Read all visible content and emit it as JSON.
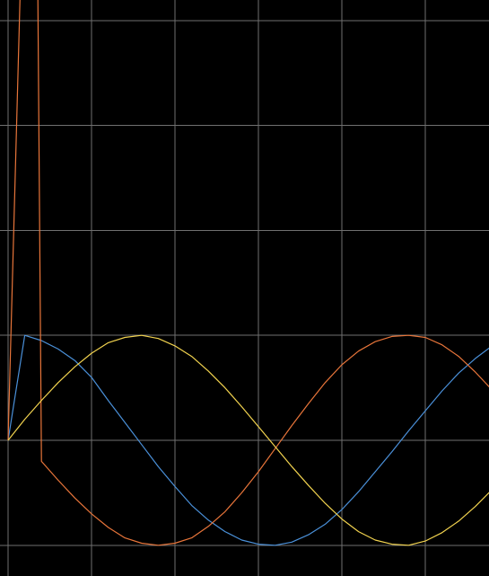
{
  "chart_data": {
    "type": "line",
    "title": "",
    "xlabel": "",
    "ylabel": "",
    "xlim": [
      0,
      5.8
    ],
    "ylim": [
      -1,
      4.2
    ],
    "grid": true,
    "legend": "none",
    "background": "#000000",
    "grid_color": "#707070",
    "x_gridlines": [
      0,
      1,
      2,
      3,
      4,
      5
    ],
    "y_gridlines": [
      -1,
      0,
      1,
      2,
      3,
      4
    ],
    "series": [
      {
        "color": "#4a90d9",
        "values": [
          [
            0,
            0
          ],
          [
            0.2,
            1
          ],
          [
            0.4,
            0.95
          ],
          [
            0.6,
            0.87
          ],
          [
            0.8,
            0.76
          ],
          [
            1.0,
            0.6
          ],
          [
            1.2,
            0.38
          ],
          [
            1.4,
            0.17
          ],
          [
            1.6,
            -0.04
          ],
          [
            1.8,
            -0.25
          ],
          [
            2.0,
            -0.44
          ],
          [
            2.2,
            -0.62
          ],
          [
            2.4,
            -0.76
          ],
          [
            2.6,
            -0.87
          ],
          [
            2.8,
            -0.95
          ],
          [
            3.0,
            -0.99
          ],
          [
            3.2,
            -1.0
          ],
          [
            3.4,
            -0.97
          ],
          [
            3.6,
            -0.9
          ],
          [
            3.8,
            -0.8
          ],
          [
            4.0,
            -0.66
          ],
          [
            4.2,
            -0.49
          ],
          [
            4.4,
            -0.3
          ],
          [
            4.6,
            -0.11
          ],
          [
            4.8,
            0.09
          ],
          [
            5.0,
            0.28
          ],
          [
            5.2,
            0.47
          ],
          [
            5.4,
            0.64
          ],
          [
            5.6,
            0.78
          ],
          [
            5.8,
            0.9
          ]
        ]
      },
      {
        "color": "#e8753a",
        "values": [
          [
            0,
            0
          ],
          [
            0.17,
            5.0
          ],
          [
            0.35,
            5.0
          ],
          [
            0.4,
            -0.2
          ],
          [
            0.6,
            -0.38
          ],
          [
            0.8,
            -0.55
          ],
          [
            1.0,
            -0.7
          ],
          [
            1.2,
            -0.83
          ],
          [
            1.4,
            -0.93
          ],
          [
            1.6,
            -0.98
          ],
          [
            1.8,
            -1.0
          ],
          [
            2.0,
            -0.98
          ],
          [
            2.2,
            -0.93
          ],
          [
            2.4,
            -0.82
          ],
          [
            2.6,
            -0.68
          ],
          [
            2.8,
            -0.5
          ],
          [
            3.0,
            -0.3
          ],
          [
            3.2,
            -0.08
          ],
          [
            3.4,
            0.14
          ],
          [
            3.6,
            0.35
          ],
          [
            3.8,
            0.55
          ],
          [
            4.0,
            0.72
          ],
          [
            4.2,
            0.85
          ],
          [
            4.4,
            0.94
          ],
          [
            4.6,
            0.99
          ],
          [
            4.8,
            1.0
          ],
          [
            5.0,
            0.98
          ],
          [
            5.2,
            0.91
          ],
          [
            5.4,
            0.8
          ],
          [
            5.6,
            0.65
          ],
          [
            5.8,
            0.48
          ]
        ]
      },
      {
        "color": "#f2d34f",
        "values": [
          [
            0,
            0
          ],
          [
            0.2,
            0.2
          ],
          [
            0.4,
            0.38
          ],
          [
            0.6,
            0.55
          ],
          [
            0.8,
            0.7
          ],
          [
            1.0,
            0.83
          ],
          [
            1.2,
            0.93
          ],
          [
            1.4,
            0.98
          ],
          [
            1.6,
            1.0
          ],
          [
            1.8,
            0.97
          ],
          [
            2.0,
            0.9
          ],
          [
            2.2,
            0.8
          ],
          [
            2.4,
            0.66
          ],
          [
            2.6,
            0.5
          ],
          [
            2.8,
            0.32
          ],
          [
            3.0,
            0.13
          ],
          [
            3.2,
            -0.06
          ],
          [
            3.4,
            -0.25
          ],
          [
            3.6,
            -0.43
          ],
          [
            3.8,
            -0.6
          ],
          [
            4.0,
            -0.75
          ],
          [
            4.2,
            -0.87
          ],
          [
            4.4,
            -0.95
          ],
          [
            4.6,
            -0.99
          ],
          [
            4.8,
            -1.0
          ],
          [
            5.0,
            -0.96
          ],
          [
            5.2,
            -0.88
          ],
          [
            5.4,
            -0.77
          ],
          [
            5.6,
            -0.63
          ],
          [
            5.8,
            -0.47
          ]
        ]
      }
    ]
  }
}
